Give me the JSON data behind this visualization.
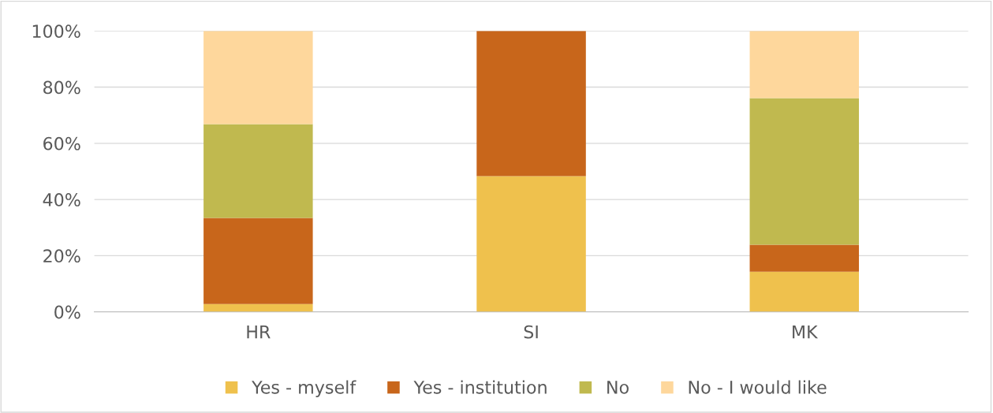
{
  "chart_data": {
    "type": "bar",
    "stacked": true,
    "categories": [
      "HR",
      "SI",
      "MK"
    ],
    "series": [
      {
        "name": "Yes - myself",
        "color": "#efc14d",
        "values": [
          2.8,
          48.3,
          14.3
        ]
      },
      {
        "name": "Yes - institution",
        "color": "#c8661b",
        "values": [
          30.6,
          51.7,
          9.6
        ]
      },
      {
        "name": "No",
        "color": "#c0b94f",
        "values": [
          33.4,
          0,
          52.2
        ]
      },
      {
        "name": "No - I would like",
        "color": "#fed79c",
        "values": [
          33.2,
          0,
          23.9
        ]
      }
    ],
    "ylim": [
      0,
      100
    ],
    "yticks": [
      {
        "value": 0,
        "label": "0%"
      },
      {
        "value": 20,
        "label": "20%"
      },
      {
        "value": 40,
        "label": "40%"
      },
      {
        "value": 60,
        "label": "60%"
      },
      {
        "value": 80,
        "label": "80%"
      },
      {
        "value": 100,
        "label": "100%"
      }
    ],
    "grid": "y",
    "legend": "bottom"
  }
}
